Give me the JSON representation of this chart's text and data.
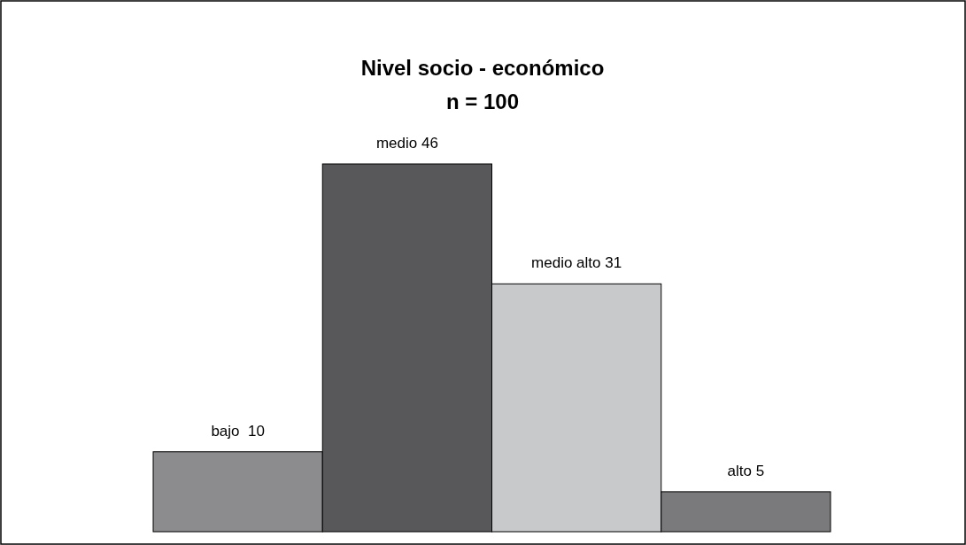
{
  "chart_data": {
    "type": "bar",
    "title": "Nivel socio - económico",
    "subtitle": "n = 100",
    "categories": [
      null,
      null,
      null,
      null
    ],
    "values": [
      10,
      46,
      31,
      5
    ],
    "colors": [
      "#8c8c8e",
      "#58585a",
      "#c8c9cb",
      "#7a7a7c"
    ],
    "value_labels": [
      "bajo  10",
      "medio 46",
      "medio alto 31",
      "alto 5"
    ]
  }
}
